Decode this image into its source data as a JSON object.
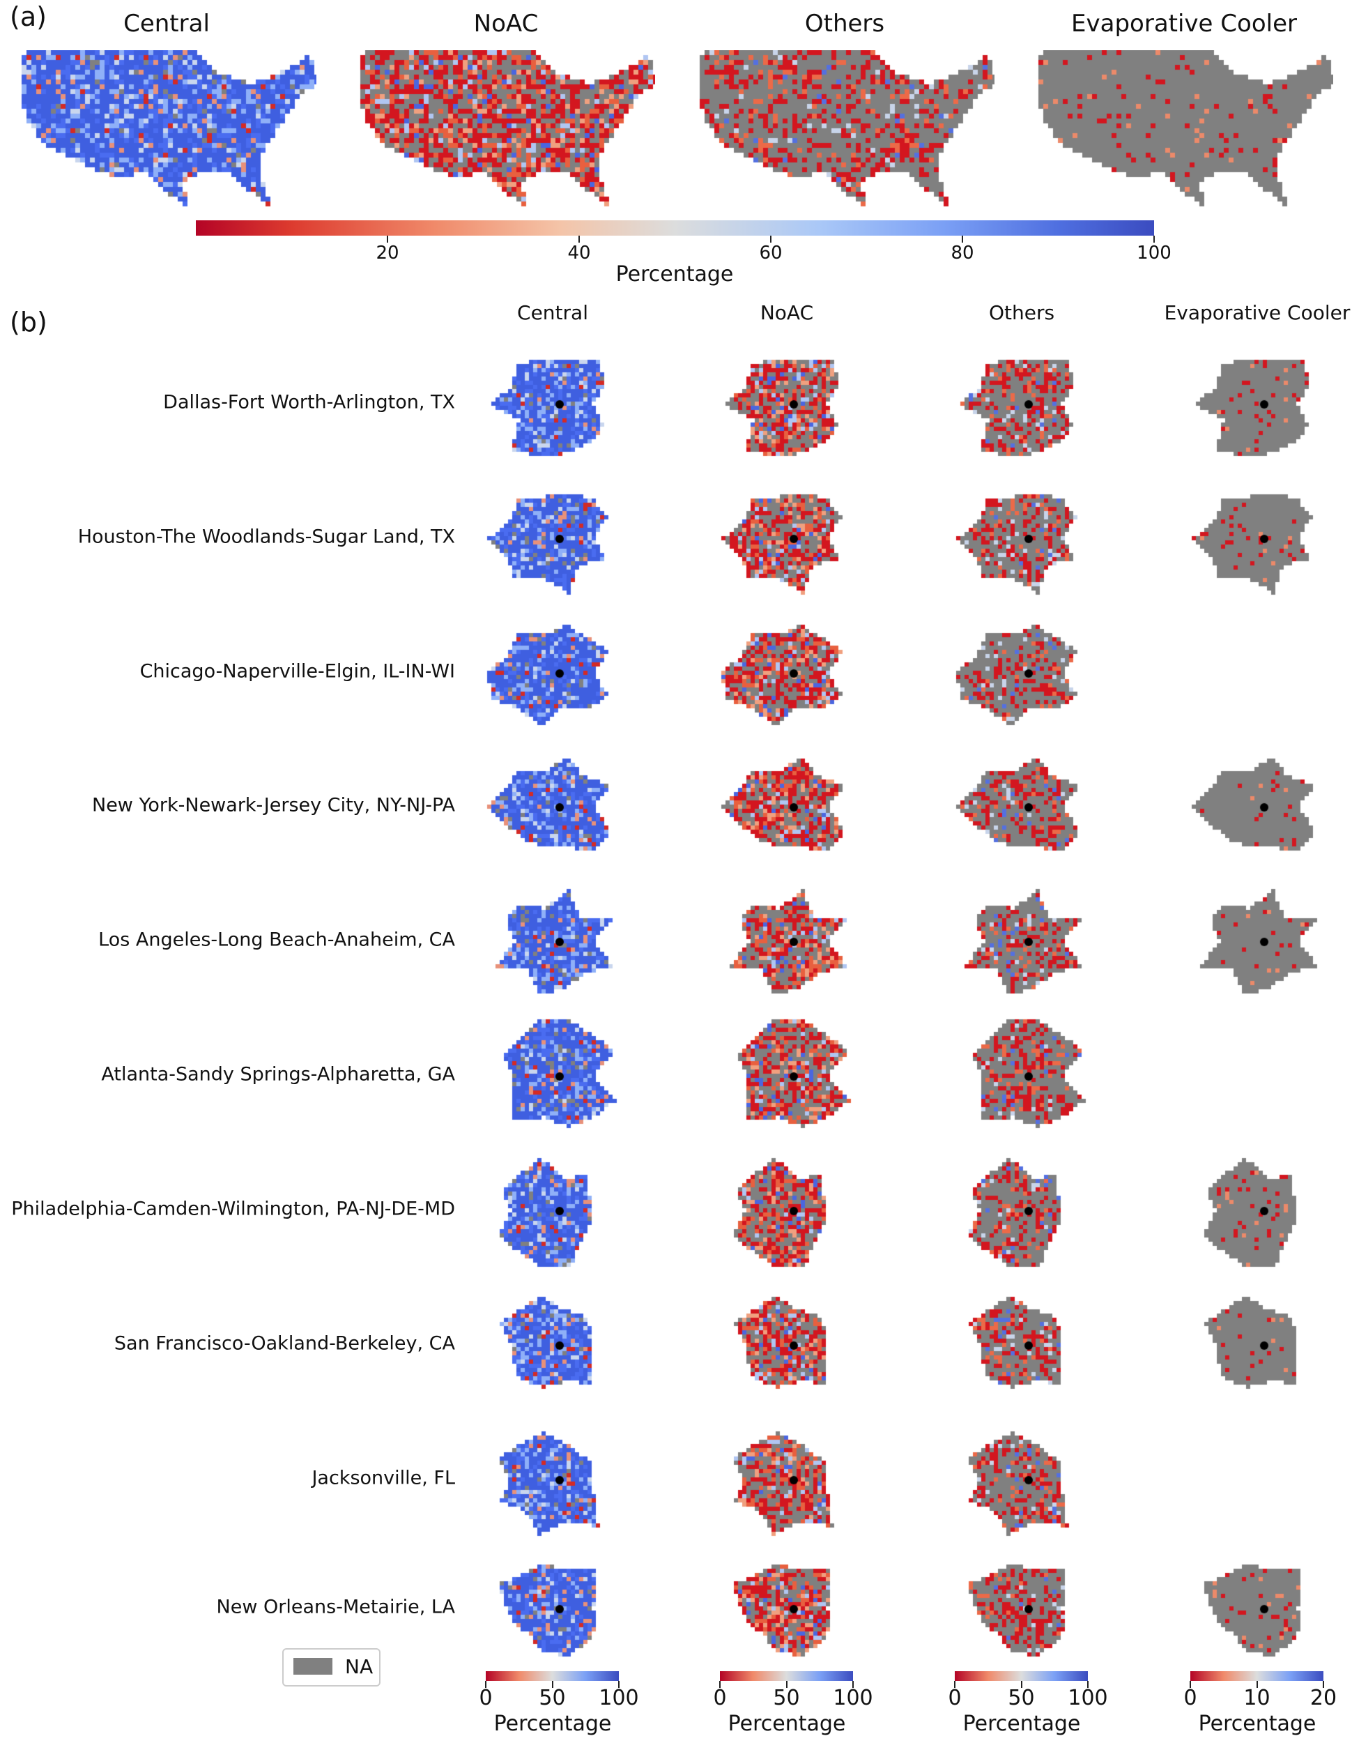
{
  "panel_a": {
    "label": "(a)",
    "titles": [
      "Central",
      "NoAC",
      "Others",
      "Evaporative Cooler"
    ],
    "colorbar": {
      "ticks": [
        "20",
        "40",
        "60",
        "80",
        "100"
      ],
      "tick_values": [
        20,
        40,
        60,
        80,
        100
      ],
      "range": [
        0,
        100
      ],
      "label": "Percentage"
    }
  },
  "panel_b": {
    "label": "(b)",
    "columns": [
      "Central",
      "NoAC",
      "Others",
      "Evaporative Cooler"
    ],
    "rows": [
      {
        "name": "Dallas-Fort Worth-Arlington, TX",
        "available": [
          true,
          true,
          true,
          true
        ]
      },
      {
        "name": "Houston-The Woodlands-Sugar Land, TX",
        "available": [
          true,
          true,
          true,
          true
        ]
      },
      {
        "name": "Chicago-Naperville-Elgin, IL-IN-WI",
        "available": [
          true,
          true,
          true,
          false
        ]
      },
      {
        "name": "New York-Newark-Jersey City, NY-NJ-PA",
        "available": [
          true,
          true,
          true,
          true
        ]
      },
      {
        "name": "Los Angeles-Long Beach-Anaheim, CA",
        "available": [
          true,
          true,
          true,
          true
        ]
      },
      {
        "name": "Atlanta-Sandy Springs-Alpharetta, GA",
        "available": [
          true,
          true,
          true,
          false
        ]
      },
      {
        "name": "Philadelphia-Camden-Wilmington, PA-NJ-DE-MD",
        "available": [
          true,
          true,
          true,
          true
        ]
      },
      {
        "name": "San Francisco-Oakland-Berkeley, CA",
        "available": [
          true,
          true,
          true,
          true
        ]
      },
      {
        "name": "Jacksonville, FL",
        "available": [
          true,
          true,
          true,
          false
        ]
      },
      {
        "name": "New Orleans-Metairie, LA",
        "available": [
          true,
          true,
          true,
          true
        ]
      }
    ],
    "legend": {
      "label": "NA",
      "color": "#808080"
    },
    "colorbars": [
      {
        "ticks": [
          "0",
          "50",
          "100"
        ],
        "range": [
          0,
          100
        ],
        "label": "Percentage"
      },
      {
        "ticks": [
          "0",
          "50",
          "100"
        ],
        "range": [
          0,
          100
        ],
        "label": "Percentage"
      },
      {
        "ticks": [
          "0",
          "50",
          "100"
        ],
        "range": [
          0,
          100
        ],
        "label": "Percentage"
      },
      {
        "ticks": [
          "0",
          "10",
          "20"
        ],
        "range": [
          0,
          20
        ],
        "label": "Percentage"
      }
    ]
  },
  "colors": {
    "low": "#b40426",
    "mid": "#dddddd",
    "high": "#3b4cc0",
    "na": "#808080"
  }
}
